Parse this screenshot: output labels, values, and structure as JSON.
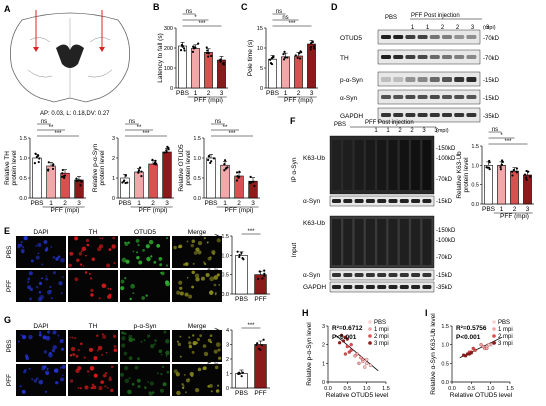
{
  "colors": {
    "pbs": "#ffffff",
    "pff1": "#f2a8a8",
    "pff2": "#d95050",
    "pff3": "#8b1a1a",
    "dapi": "#2233cc",
    "th": "#d41a1a",
    "otud5": "#2fb32f",
    "merge": "#8a8a20"
  },
  "panelA": {
    "letter": "A",
    "coords": "AP: 0.03, L: 0.18,DV: 0.27"
  },
  "panelB": {
    "letter": "B",
    "chart_data": {
      "type": "bar",
      "ylabel": "Latency to fall (s)",
      "categories": [
        "PBS",
        "1",
        "2",
        "3"
      ],
      "values": [
        210,
        198,
        178,
        140
      ],
      "ylim": [
        0,
        300
      ],
      "yticks": [
        "0",
        "100",
        "200",
        "300"
      ],
      "xlabel": "PFF (mpi)",
      "sig": [
        "ns",
        "*",
        "***"
      ]
    }
  },
  "panelC": {
    "letter": "C",
    "chart_data": {
      "type": "bar",
      "ylabel": "Pole time (s)",
      "categories": [
        "PBS",
        "1",
        "2",
        "3"
      ],
      "values": [
        7.2,
        7.8,
        8.0,
        11.0
      ],
      "ylim": [
        0,
        15
      ],
      "yticks": [
        "0",
        "5",
        "10",
        "15"
      ],
      "xlabel": "PFF (mpi)",
      "sig": [
        "ns",
        "ns",
        "***"
      ]
    }
  },
  "panelD": {
    "letter": "D",
    "pbs": "PBS",
    "pff": "PFF Post injection",
    "lanes": [
      "1",
      "1",
      "2",
      "2",
      "3",
      "3"
    ],
    "mpi": "(mpi)",
    "rows": [
      "OTUD5",
      "TH",
      "p-α-Syn",
      "α-Syn",
      "GAPDH"
    ],
    "markers": [
      "-70kD",
      "-70kD",
      "-15kD",
      "-15kD",
      "-35kD"
    ]
  },
  "panelTH": {
    "chart_data": {
      "type": "bar",
      "ylabel": "Relative TH protein level",
      "categories": [
        "PBS",
        "1",
        "2",
        "3"
      ],
      "values": [
        1.0,
        0.8,
        0.62,
        0.45
      ],
      "ylim": [
        0,
        1.5
      ],
      "yticks": [
        "0.0",
        "0.5",
        "1.0",
        "1.5"
      ],
      "xlabel": "PFF (mpi)",
      "sig": [
        "ns",
        "**",
        "***"
      ]
    }
  },
  "panelPSyn": {
    "chart_data": {
      "type": "bar",
      "ylabel": "Relative p-α-Syn protein level",
      "categories": [
        "PBS",
        "1",
        "2",
        "3"
      ],
      "values": [
        1.0,
        1.3,
        1.7,
        2.3
      ],
      "ylim": [
        0,
        3
      ],
      "yticks": [
        "0",
        "1",
        "2",
        "3"
      ],
      "xlabel": "PFF (mpi)",
      "sig": [
        "ns",
        "**",
        "***"
      ]
    }
  },
  "panelOtud5Bar": {
    "chart_data": {
      "type": "bar",
      "ylabel": "Relative OTUD5 protein level",
      "categories": [
        "PBS",
        "1",
        "2",
        "3"
      ],
      "values": [
        1.0,
        0.82,
        0.55,
        0.42
      ],
      "ylim": [
        0,
        1.5
      ],
      "yticks": [
        "0.0",
        "0.5",
        "1.0",
        "1.5"
      ],
      "xlabel": "PFF (mpi)",
      "sig": [
        "ns",
        "**",
        "***"
      ]
    }
  },
  "panelE": {
    "letter": "E",
    "cols": [
      "DAPI",
      "TH",
      "OTUD5",
      "Merge"
    ],
    "rows": [
      "PBS",
      "PFF"
    ],
    "chart_data": {
      "type": "bar",
      "ylabel": "Relative OTUD5 fluorescence intensity",
      "categories": [
        "PBS",
        "PFF"
      ],
      "values": [
        1.0,
        0.5
      ],
      "ylim": [
        0,
        1.5
      ],
      "yticks": [
        "0.0",
        "0.5",
        "1.0",
        "1.5"
      ],
      "sig": [
        "***"
      ]
    }
  },
  "panelF": {
    "letter": "F",
    "pbs": "PBS",
    "pff": "PFF Post injection",
    "lanes": [
      "1",
      "1",
      "2",
      "2",
      "3",
      "3"
    ],
    "mpi": "(mpi)",
    "ip": "IP α-Syn",
    "input": "Input",
    "k63": "K63-Ub",
    "asyn": "α-Syn",
    "gapdh": "GAPDH",
    "markers": [
      "-150kD",
      "-100kD",
      "-70kD",
      "-15kD",
      "-150kD",
      "-100kD",
      "-70kD",
      "-15kD",
      "-35kD"
    ],
    "chart_data": {
      "type": "bar",
      "ylabel": "Relative K63-Ub protein level",
      "categories": [
        "PBS",
        "1",
        "2",
        "3"
      ],
      "values": [
        1.0,
        1.0,
        0.85,
        0.75
      ],
      "ylim": [
        0,
        1.5
      ],
      "yticks": [
        "0.0",
        "0.5",
        "1.0",
        "1.5"
      ],
      "xlabel": "PFF (mpi)",
      "sig": [
        "ns",
        "*",
        "***"
      ]
    }
  },
  "panelG": {
    "letter": "G",
    "cols": [
      "DAPI",
      "TH",
      "p-α-Syn",
      "Merge"
    ],
    "rows": [
      "PBS",
      "PFF"
    ],
    "chart_data": {
      "type": "bar",
      "ylabel": "Relative p-α-Syn fluorescence intensity",
      "categories": [
        "PBS",
        "PFF"
      ],
      "values": [
        1.0,
        3.0
      ],
      "ylim": [
        0,
        4
      ],
      "yticks": [
        "0",
        "1",
        "2",
        "3",
        "4"
      ],
      "sig": [
        "***"
      ]
    }
  },
  "panelH": {
    "letter": "H",
    "chart_data": {
      "type": "scatter",
      "r2": "R²=0.6712",
      "p": "P<0.001",
      "xlabel": "Relative OTUD5 level",
      "ylabel": "Relative p-α-Syn level",
      "xlim": [
        0,
        1.5
      ],
      "ylim": [
        0,
        3
      ],
      "xticks": [
        "0.0",
        "0.5",
        "1.0",
        "1.5"
      ],
      "yticks": [
        "0",
        "1",
        "2",
        "3"
      ],
      "legend": [
        "PBS",
        "1 mpi",
        "2 mpi",
        "3 mpi"
      ],
      "fit": [
        [
          0.2,
          2.5
        ],
        [
          1.3,
          0.6
        ]
      ],
      "points": [
        [
          1.0,
          1.0,
          0
        ],
        [
          0.9,
          1.1,
          0
        ],
        [
          1.1,
          0.9,
          0
        ],
        [
          1.0,
          1.2,
          0
        ],
        [
          0.95,
          0.8,
          0
        ],
        [
          0.85,
          1.3,
          1
        ],
        [
          0.8,
          1.0,
          1
        ],
        [
          0.75,
          1.5,
          1
        ],
        [
          0.9,
          1.2,
          1
        ],
        [
          0.7,
          1.4,
          1
        ],
        [
          0.55,
          1.6,
          2
        ],
        [
          0.5,
          1.9,
          2
        ],
        [
          0.6,
          1.7,
          2
        ],
        [
          0.45,
          1.5,
          2
        ],
        [
          0.6,
          2.0,
          2
        ],
        [
          0.4,
          2.2,
          3
        ],
        [
          0.35,
          2.5,
          3
        ],
        [
          0.45,
          2.4,
          3
        ],
        [
          0.3,
          2.1,
          3
        ],
        [
          0.5,
          2.3,
          3
        ]
      ]
    }
  },
  "panelI": {
    "letter": "I",
    "chart_data": {
      "type": "scatter",
      "r2": "R²=0.5756",
      "p": "P<0.001",
      "xlabel": "Relative OTUD5 level",
      "ylabel": "Relative α-Syn K63-Ub level",
      "xlim": [
        0,
        1.5
      ],
      "ylim": [
        0,
        1.5
      ],
      "xticks": [
        "0.0",
        "0.5",
        "1.0",
        "1.5"
      ],
      "yticks": [
        "0.0",
        "0.5",
        "1.0",
        "1.5"
      ],
      "legend": [
        "PBS",
        "1 mpi",
        "2 mpi",
        "3 mpi"
      ],
      "fit": [
        [
          0.2,
          0.65
        ],
        [
          1.3,
          1.2
        ]
      ],
      "points": [
        [
          1.0,
          1.0,
          0
        ],
        [
          0.9,
          0.95,
          0
        ],
        [
          1.1,
          1.05,
          0
        ],
        [
          0.95,
          1.0,
          0
        ],
        [
          0.85,
          0.9,
          1
        ],
        [
          0.8,
          0.95,
          1
        ],
        [
          0.75,
          1.0,
          1
        ],
        [
          0.9,
          0.9,
          1
        ],
        [
          0.6,
          0.85,
          2
        ],
        [
          0.5,
          0.8,
          2
        ],
        [
          0.55,
          0.9,
          2
        ],
        [
          0.45,
          0.8,
          2
        ],
        [
          0.4,
          0.75,
          3
        ],
        [
          0.35,
          0.7,
          3
        ],
        [
          0.45,
          0.75,
          3
        ],
        [
          0.3,
          0.72,
          3
        ],
        [
          0.5,
          0.78,
          3
        ]
      ]
    }
  }
}
